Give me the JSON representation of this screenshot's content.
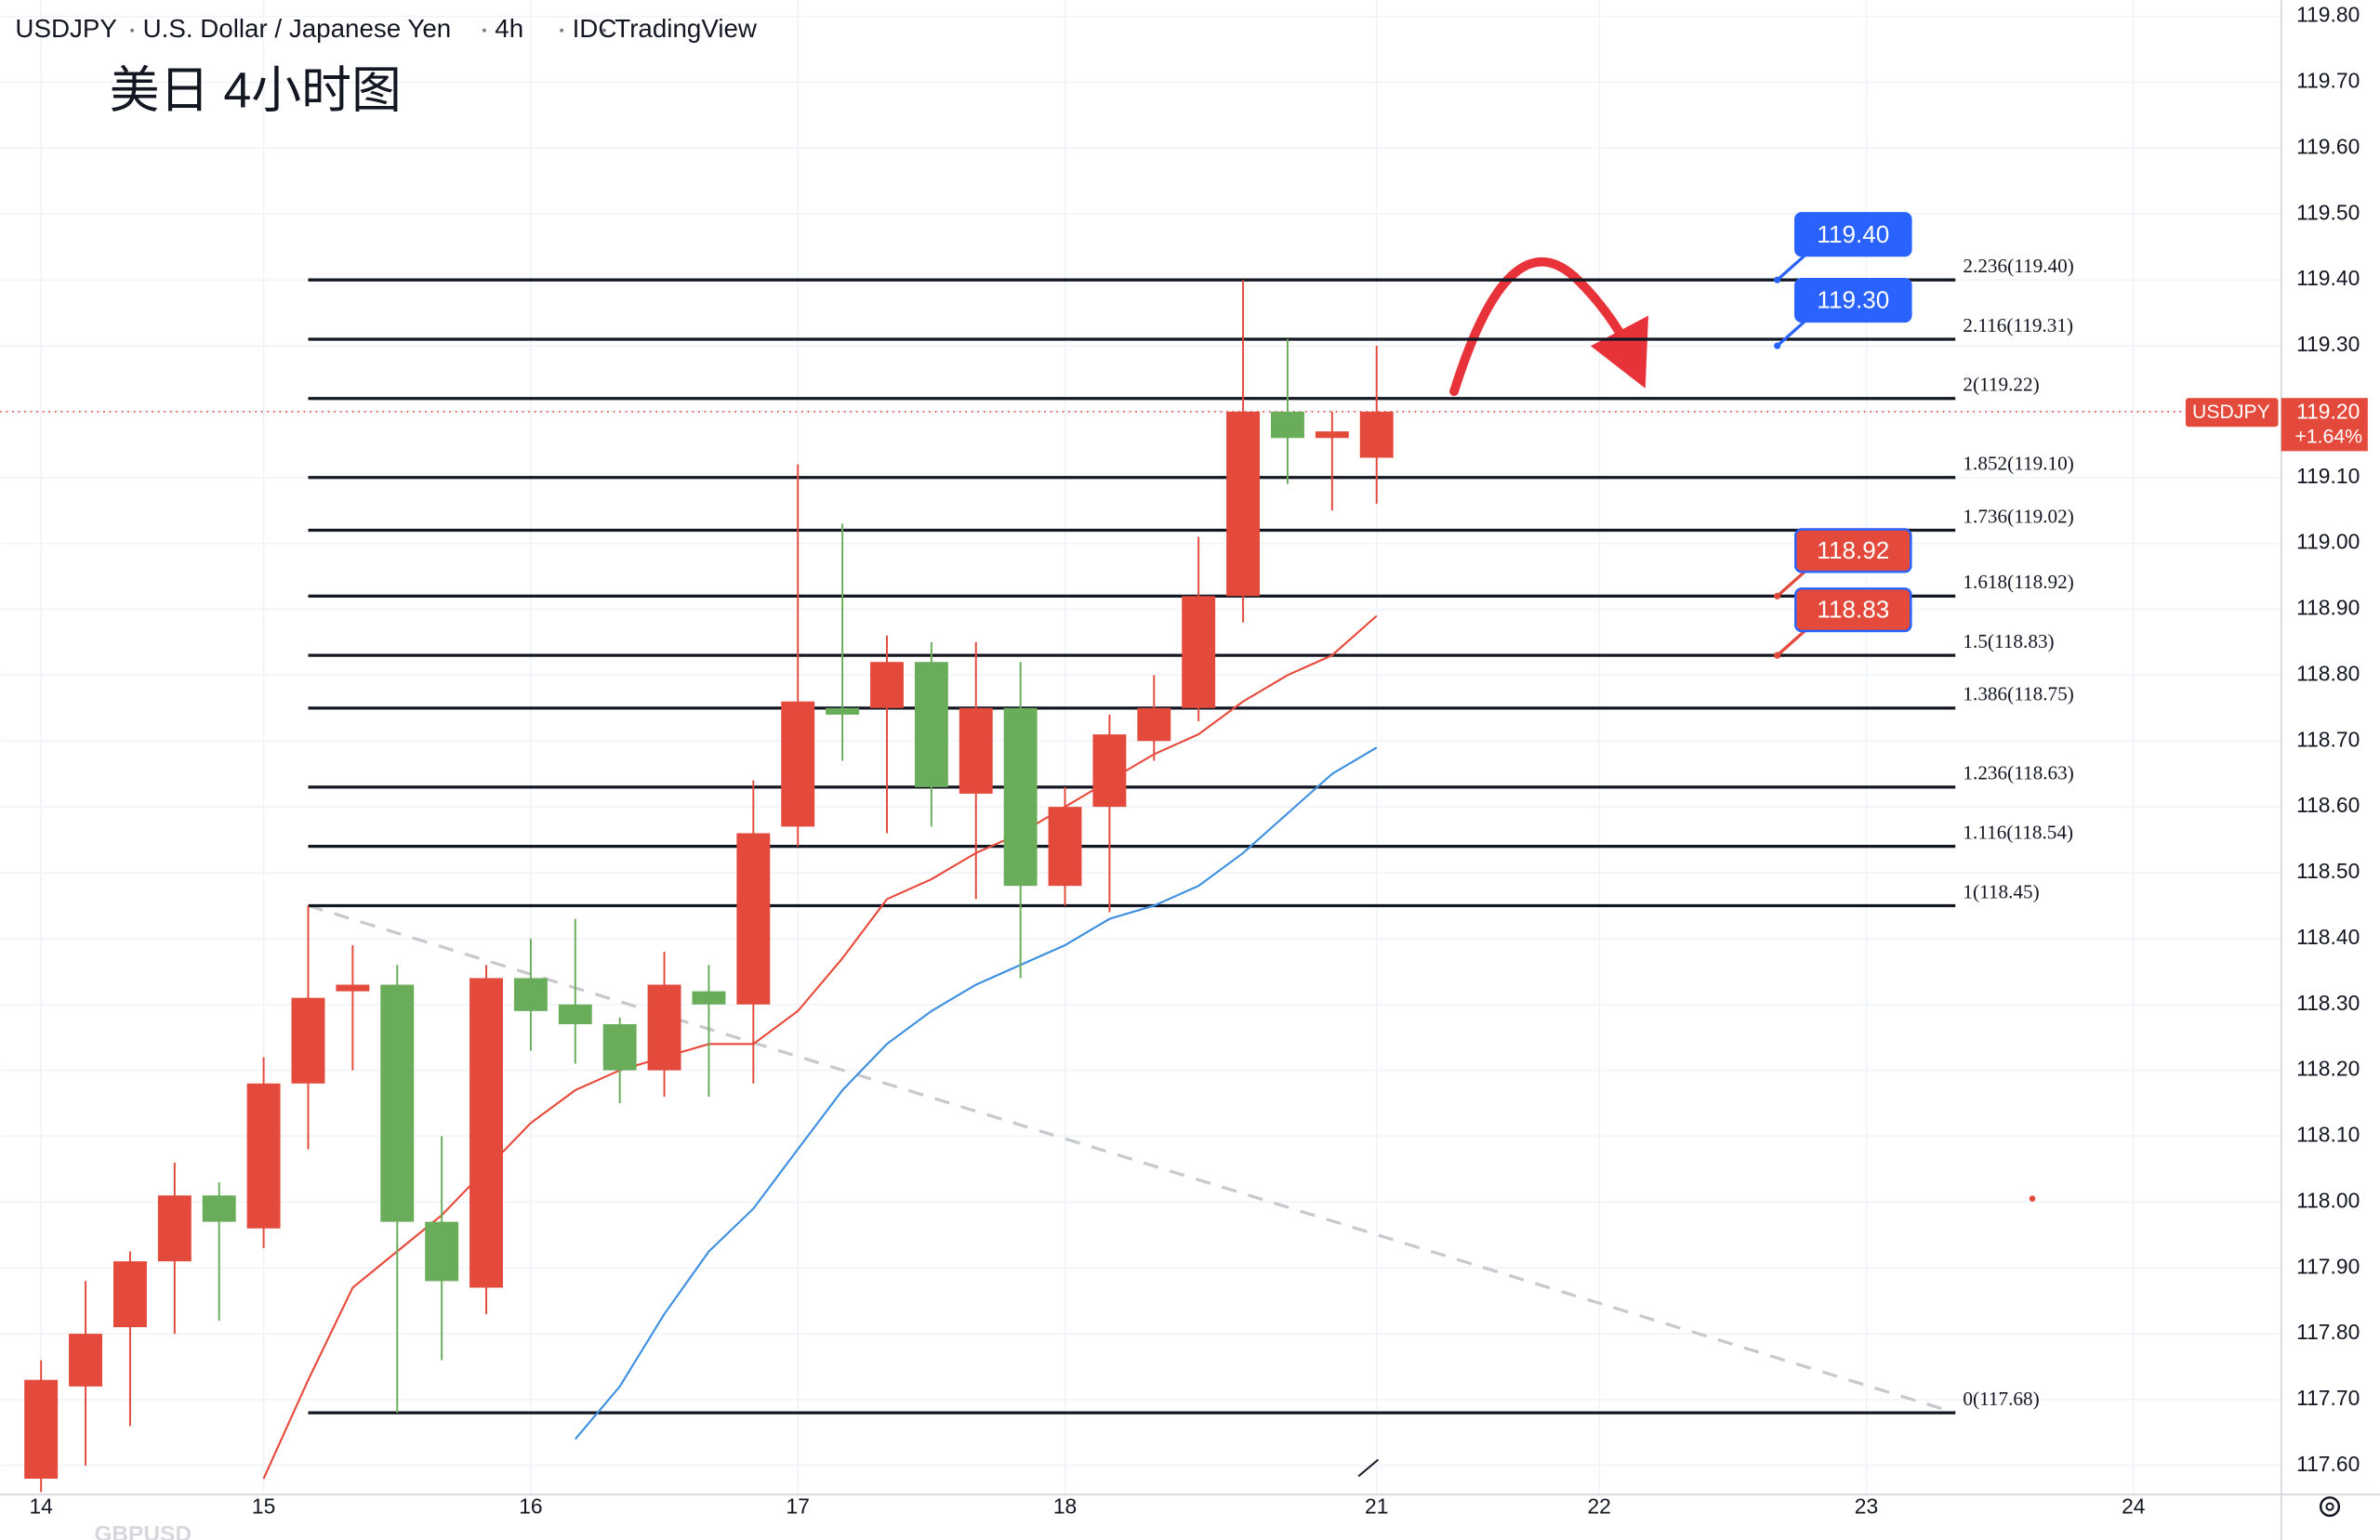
{
  "chart_data": {
    "type": "candlestick",
    "header": [
      "USDJPY",
      "U.S. Dollar / Japanese Yen",
      "4h",
      "IDC",
      "TradingView"
    ],
    "title": "美日 4小时图",
    "watermark": "GBPUSD",
    "up_color": "#e34a3c",
    "down_color": "#69ad5b",
    "x": [
      0,
      1,
      2,
      3,
      4,
      5,
      6,
      7,
      8,
      9,
      10,
      11,
      12,
      13,
      14,
      15,
      16,
      17,
      18,
      19,
      20,
      21,
      22,
      23,
      24,
      25,
      26,
      27,
      28,
      29,
      30
    ],
    "open": [
      117.58,
      117.72,
      117.81,
      117.91,
      118.01,
      117.96,
      118.18,
      118.32,
      118.33,
      117.97,
      117.87,
      118.34,
      118.3,
      118.27,
      118.2,
      118.32,
      118.3,
      118.57,
      118.75,
      118.75,
      118.82,
      118.62,
      118.75,
      118.48,
      118.6,
      118.7,
      118.75,
      118.92,
      119.2,
      119.16,
      119.13
    ],
    "high": [
      117.76,
      117.88,
      117.925,
      118.06,
      118.03,
      118.22,
      118.45,
      118.39,
      118.36,
      118.1,
      118.36,
      118.4,
      118.43,
      118.28,
      118.38,
      118.36,
      118.64,
      119.12,
      119.03,
      118.86,
      118.85,
      118.85,
      118.82,
      118.63,
      118.74,
      118.8,
      119.01,
      119.4,
      119.31,
      119.2,
      119.3
    ],
    "low": [
      117.56,
      117.6,
      117.66,
      117.8,
      117.82,
      117.93,
      118.08,
      118.2,
      117.68,
      117.76,
      117.83,
      118.23,
      118.21,
      118.15,
      118.16,
      118.16,
      118.18,
      118.54,
      118.67,
      118.56,
      118.57,
      118.46,
      118.34,
      118.45,
      118.44,
      118.67,
      118.73,
      118.88,
      119.09,
      119.05,
      119.06
    ],
    "close": [
      117.73,
      117.8,
      117.91,
      118.01,
      117.97,
      118.18,
      118.31,
      118.33,
      117.97,
      117.88,
      118.34,
      118.29,
      118.27,
      118.2,
      118.33,
      118.3,
      118.56,
      118.76,
      118.74,
      118.82,
      118.63,
      118.75,
      118.48,
      118.6,
      118.71,
      118.75,
      118.92,
      119.2,
      119.16,
      119.17,
      119.2
    ],
    "lines": [
      {
        "color": "#e8493a",
        "values": [
          null,
          null,
          null,
          null,
          null,
          117.58,
          117.73,
          117.87,
          117.925,
          117.98,
          118.05,
          118.12,
          118.17,
          118.2,
          118.22,
          118.24,
          118.24,
          118.29,
          118.37,
          118.46,
          118.49,
          118.53,
          118.56,
          118.6,
          118.64,
          118.68,
          118.71,
          118.76,
          118.8,
          118.83,
          118.89
        ]
      },
      {
        "color": "#3d8fe0",
        "values": [
          null,
          null,
          null,
          null,
          null,
          null,
          null,
          null,
          null,
          null,
          null,
          null,
          117.64,
          117.72,
          117.83,
          117.925,
          117.99,
          118.08,
          118.17,
          118.24,
          118.29,
          118.33,
          118.36,
          118.39,
          118.43,
          118.45,
          118.48,
          118.53,
          118.59,
          118.65,
          118.69
        ]
      }
    ],
    "fib_x": [
      6,
      43
    ],
    "fib_levels": [
      {
        "value": 119.4,
        "label": "2.236(119.40)"
      },
      {
        "value": 119.31,
        "label": "2.116(119.31)"
      },
      {
        "value": 119.22,
        "label": "2(119.22)"
      },
      {
        "value": 119.1,
        "label": "1.852(119.10)"
      },
      {
        "value": 119.02,
        "label": "1.736(119.02)"
      },
      {
        "value": 118.92,
        "label": "1.618(118.92)"
      },
      {
        "value": 118.83,
        "label": "1.5(118.83)"
      },
      {
        "value": 118.75,
        "label": "1.386(118.75)"
      },
      {
        "value": 118.63,
        "label": "1.236(118.63)"
      },
      {
        "value": 118.54,
        "label": "1.116(118.54)"
      },
      {
        "value": 118.45,
        "label": "1(118.45)"
      },
      {
        "value": 117.68,
        "label": "0(117.68)"
      }
    ],
    "trendline": {
      "x": [
        6,
        43
      ],
      "values": [
        118.45,
        117.68
      ]
    },
    "callout_x": 39,
    "callouts": [
      {
        "value": 119.4,
        "label": "119.40",
        "color": "#2962ff"
      },
      {
        "value": 119.3,
        "label": "119.30",
        "color": "#2962ff"
      },
      {
        "value": 118.92,
        "label": "118.92",
        "color": "#e34a3c"
      },
      {
        "value": 118.83,
        "label": "118.83",
        "color": "#e34a3c"
      }
    ],
    "last_price": {
      "value": 119.2,
      "label": "119.20"
    },
    "symbol": "USDJPY",
    "change": "+1.64%",
    "xlim": [
      -0.92,
      50.32
    ],
    "xticks": [
      {
        "value": 0,
        "label": "14"
      },
      {
        "value": 5,
        "label": "15"
      },
      {
        "value": 11,
        "label": "16"
      },
      {
        "value": 17,
        "label": "17"
      },
      {
        "value": 23,
        "label": "18"
      },
      {
        "value": 30,
        "label": "21"
      },
      {
        "value": 35,
        "label": "22"
      },
      {
        "value": 41,
        "label": "23"
      },
      {
        "value": 47,
        "label": "24"
      }
    ],
    "ylim": [
      117.556,
      119.825
    ],
    "yticks": [
      {
        "value": 119.8,
        "label": "119.80"
      },
      {
        "value": 119.7,
        "label": "119.70"
      },
      {
        "value": 119.6,
        "label": "119.60"
      },
      {
        "value": 119.5,
        "label": "119.50"
      },
      {
        "value": 119.4,
        "label": "119.40"
      },
      {
        "value": 119.3,
        "label": "119.30"
      },
      {
        "value": 119.2,
        "label": "119.20"
      },
      {
        "value": 119.1,
        "label": "119.10"
      },
      {
        "value": 119.0,
        "label": "119.00"
      },
      {
        "value": 118.9,
        "label": "118.90"
      },
      {
        "value": 118.8,
        "label": "118.80"
      },
      {
        "value": 118.7,
        "label": "118.70"
      },
      {
        "value": 118.6,
        "label": "118.60"
      },
      {
        "value": 118.5,
        "label": "118.50"
      },
      {
        "value": 118.4,
        "label": "118.40"
      },
      {
        "value": 118.3,
        "label": "118.30"
      },
      {
        "value": 118.2,
        "label": "118.20"
      },
      {
        "value": 118.1,
        "label": "118.10"
      },
      {
        "value": 118.0,
        "label": "118.00"
      },
      {
        "value": 117.9,
        "label": "117.90"
      },
      {
        "value": 117.8,
        "label": "117.80"
      },
      {
        "value": 117.7,
        "label": "117.70"
      },
      {
        "value": 117.6,
        "label": "117.60"
      }
    ],
    "grid": true
  }
}
